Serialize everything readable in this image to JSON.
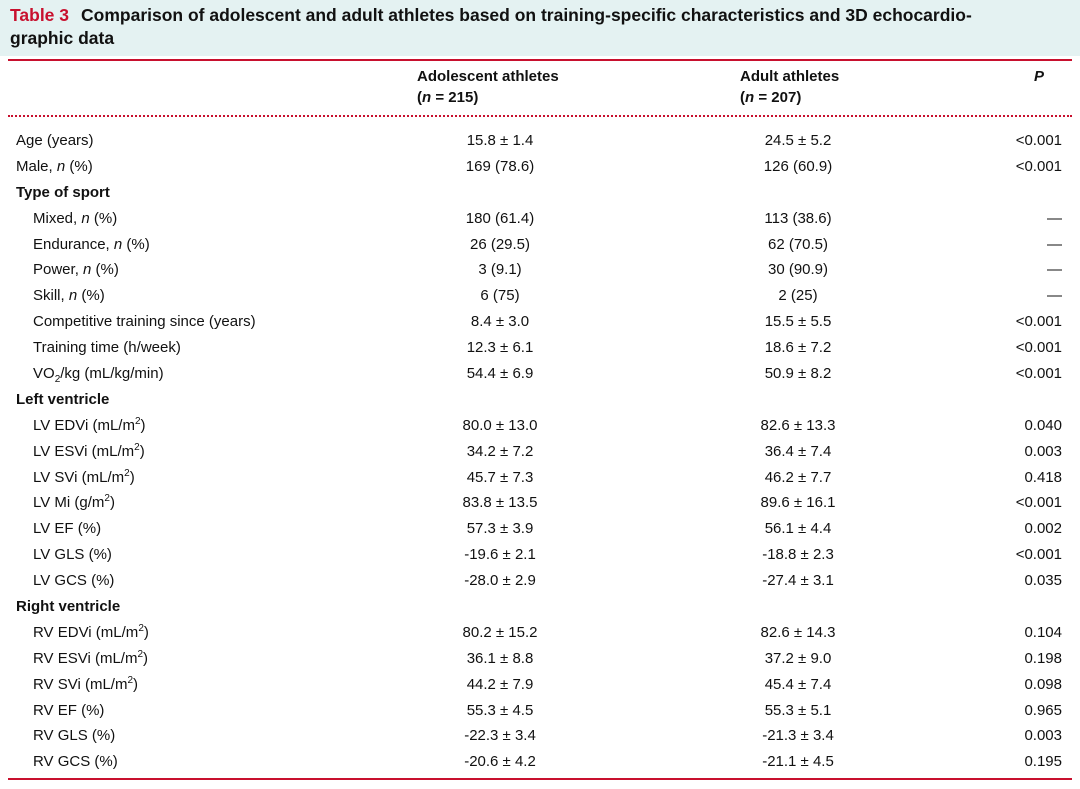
{
  "caption": {
    "label": "Table 3",
    "line1": "Comparison of adolescent and adult athletes based on training-specific characteristics and 3D echocardio-",
    "line2": "graphic data"
  },
  "header": {
    "col1_title": "Adolescent athletes",
    "col1_n": "215",
    "col2_title": "Adult athletes",
    "col2_n": "207",
    "p": "P",
    "n_label": "n",
    "eq": " = "
  },
  "rows": [
    {
      "type": "row",
      "label": "Age (years)",
      "v1": "15.8 ± 1.4",
      "v2": "24.5 ± 5.2",
      "p": "<0.001"
    },
    {
      "type": "row",
      "label_pre": "Male, ",
      "label_it": "n",
      "label_post": " (%)",
      "v1": "169 (78.6)",
      "v2": "126 (60.9)",
      "p": "<0.001"
    },
    {
      "type": "sec",
      "label": "Type of sport"
    },
    {
      "type": "sub",
      "label_pre": "Mixed, ",
      "label_it": "n",
      "label_post": " (%)",
      "v1": "180 (61.4)",
      "v2": "113 (38.6)",
      "p": "—"
    },
    {
      "type": "sub",
      "label_pre": "Endurance, ",
      "label_it": "n",
      "label_post": " (%)",
      "v1": "26 (29.5)",
      "v2": "62 (70.5)",
      "p": "—"
    },
    {
      "type": "sub",
      "label_pre": "Power, ",
      "label_it": "n",
      "label_post": " (%)",
      "v1": "3 (9.1)",
      "v2": "30 (90.9)",
      "p": "—"
    },
    {
      "type": "sub",
      "label_pre": "Skill, ",
      "label_it": "n",
      "label_post": " (%)",
      "v1": "6 (75)",
      "v2": "2 (25)",
      "p": "—"
    },
    {
      "type": "sub",
      "label": "Competitive training since (years)",
      "v1": "8.4 ± 3.0",
      "v2": "15.5 ± 5.5",
      "p": "<0.001"
    },
    {
      "type": "sub",
      "label": "Training time (h/week)",
      "v1": "12.3 ± 6.1",
      "v2": "18.6 ± 7.2",
      "p": "<0.001"
    },
    {
      "type": "sub",
      "label_pre": "VO",
      "label_sub": "2",
      "label_post": "/kg (mL/kg/min)",
      "v1": "54.4 ± 6.9",
      "v2": "50.9 ± 8.2",
      "p": "<0.001"
    },
    {
      "type": "sec",
      "label": "Left ventricle"
    },
    {
      "type": "sub",
      "label_pre": "LV EDVi (mL/m",
      "label_sup": "2",
      "label_post": ")",
      "v1": "80.0 ± 13.0",
      "v2": "82.6 ± 13.3",
      "p": "0.040"
    },
    {
      "type": "sub",
      "label_pre": "LV ESVi (mL/m",
      "label_sup": "2",
      "label_post": ")",
      "v1": "34.2 ± 7.2",
      "v2": "36.4 ± 7.4",
      "p": "0.003"
    },
    {
      "type": "sub",
      "label_pre": "LV SVi (mL/m",
      "label_sup": "2",
      "label_post": ")",
      "v1": "45.7 ± 7.3",
      "v2": "46.2 ± 7.7",
      "p": "0.418"
    },
    {
      "type": "sub",
      "label_pre": "LV Mi (g/m",
      "label_sup": "2",
      "label_post": ")",
      "v1": "83.8 ± 13.5",
      "v2": "89.6 ± 16.1",
      "p": "<0.001"
    },
    {
      "type": "sub",
      "label": "LV EF (%)",
      "v1": "57.3 ± 3.9",
      "v2": "56.1 ± 4.4",
      "p": "0.002"
    },
    {
      "type": "sub",
      "label": "LV GLS (%)",
      "v1": "-19.6 ± 2.1",
      "v2": "-18.8 ± 2.3",
      "p": "<0.001"
    },
    {
      "type": "sub",
      "label": "LV GCS (%)",
      "v1": "-28.0 ± 2.9",
      "v2": "-27.4 ± 3.1",
      "p": "0.035"
    },
    {
      "type": "sec",
      "label": "Right ventricle"
    },
    {
      "type": "sub",
      "label_pre": "RV EDVi (mL/m",
      "label_sup": "2",
      "label_post": ")",
      "v1": "80.2 ± 15.2",
      "v2": "82.6 ± 14.3",
      "p": "0.104"
    },
    {
      "type": "sub",
      "label_pre": "RV ESVi (mL/m",
      "label_sup": "2",
      "label_post": ")",
      "v1": "36.1 ± 8.8",
      "v2": "37.2 ± 9.0",
      "p": "0.198"
    },
    {
      "type": "sub",
      "label_pre": "RV SVi (mL/m",
      "label_sup": "2",
      "label_post": ")",
      "v1": "44.2 ± 7.9",
      "v2": "45.4 ± 7.4",
      "p": "0.098"
    },
    {
      "type": "sub",
      "label": "RV EF (%)",
      "v1": "55.3 ± 4.5",
      "v2": "55.3 ± 5.1",
      "p": "0.965"
    },
    {
      "type": "sub",
      "label": "RV GLS (%)",
      "v1": "-22.3 ± 3.4",
      "v2": "-21.3 ± 3.4",
      "p": "0.003"
    },
    {
      "type": "sub",
      "label": "RV GCS (%)",
      "v1": "-20.6 ± 4.2",
      "v2": "-21.1 ± 4.5",
      "p": "0.195"
    }
  ],
  "colors": {
    "accent": "#c8102e",
    "caption_bg": "#e4f2f2"
  }
}
